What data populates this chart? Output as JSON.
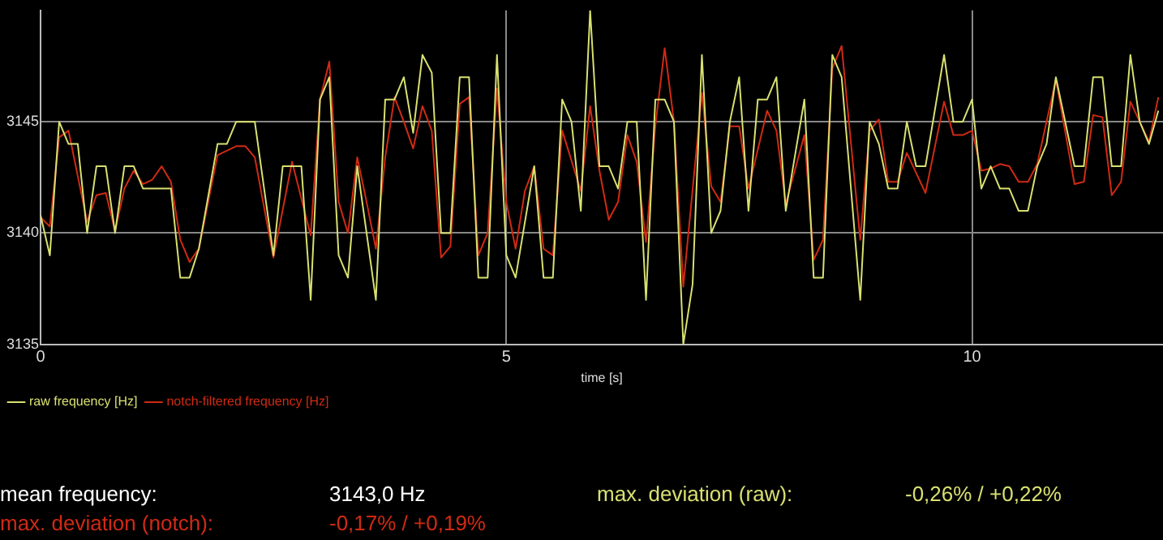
{
  "chart_data": {
    "type": "line",
    "xlabel": "time [s]",
    "xlim": [
      0,
      12.05
    ],
    "xticks": [
      0,
      5,
      10
    ],
    "ylim": [
      3135,
      3150
    ],
    "yticks": [
      3135,
      3140,
      3145
    ],
    "grid": true,
    "legend": "bottom left",
    "marker": "none",
    "line_style": "solid",
    "series": [
      {
        "name": "raw frequency [Hz]",
        "color": "#d8e070",
        "x": [
          0,
          0.1,
          0.2,
          0.3,
          0.4,
          0.5,
          0.6,
          0.7,
          0.8,
          0.9,
          1.0,
          1.1,
          1.4,
          1.5,
          1.6,
          1.7,
          1.9,
          2.0,
          2.1,
          2.3,
          2.5,
          2.6,
          2.8,
          2.9,
          3.0,
          3.1,
          3.2,
          3.3,
          3.4,
          3.5,
          3.6,
          3.7,
          3.8,
          3.9,
          4.0,
          4.1,
          4.2,
          4.3,
          4.4,
          4.5,
          4.6,
          4.7,
          4.8,
          4.9,
          5.0,
          5.1,
          5.3,
          5.4,
          5.5,
          5.6,
          5.7,
          5.8,
          5.9,
          6.0,
          6.1,
          6.2,
          6.3,
          6.4,
          6.5,
          6.6,
          6.7,
          6.8,
          6.9,
          7.0,
          7.1,
          7.2,
          7.3,
          7.4,
          7.5,
          7.6,
          7.7,
          7.8,
          7.9,
          8.0,
          8.2,
          8.3,
          8.4,
          8.5,
          8.6,
          8.8,
          8.9,
          9.0,
          9.1,
          9.2,
          9.3,
          9.4,
          9.5,
          9.7,
          9.8,
          9.9,
          10.0,
          10.1,
          10.2,
          10.3,
          10.4,
          10.5,
          10.6,
          10.7,
          10.8,
          10.9,
          11.1,
          11.2,
          11.3,
          11.4,
          11.5,
          11.6,
          11.7,
          11.8,
          11.9,
          12.0
        ],
        "values": [
          3140.8,
          3139,
          3145,
          3144,
          3144,
          3140,
          3143,
          3143,
          3140,
          3143,
          3143,
          3142,
          3142,
          3138,
          3138,
          3139.3,
          3144,
          3144,
          3145,
          3145,
          3139,
          3143,
          3143,
          3137,
          3146,
          3147,
          3139,
          3138,
          3143,
          3140,
          3137,
          3146,
          3146,
          3147,
          3144.5,
          3148,
          3147.2,
          3140,
          3140,
          3147,
          3147,
          3138,
          3138,
          3148,
          3139,
          3138,
          3143,
          3138,
          3138,
          3146,
          3145,
          3141,
          3150,
          3143,
          3143,
          3142,
          3145,
          3145,
          3137,
          3146,
          3146,
          3145,
          3135,
          3137.7,
          3148,
          3140,
          3141,
          3145,
          3147,
          3141,
          3146,
          3146,
          3147,
          3141,
          3146,
          3138,
          3138,
          3148,
          3147,
          3137,
          3145,
          3144,
          3142,
          3142,
          3145,
          3143,
          3143,
          3148,
          3145,
          3145,
          3146,
          3142,
          3143,
          3142,
          3142,
          3141,
          3141,
          3143,
          3144,
          3147,
          3143,
          3143,
          3147,
          3147,
          3143,
          3143,
          3148,
          3145,
          3144,
          3145.5
        ]
      },
      {
        "name": "notch-filtered frequency [Hz]",
        "color": "#d02a14",
        "x": [
          0,
          0.1,
          0.2,
          0.3,
          0.5,
          0.6,
          0.7,
          0.8,
          0.9,
          1.0,
          1.1,
          1.2,
          1.3,
          1.4,
          1.5,
          1.6,
          1.7,
          1.9,
          2.1,
          2.2,
          2.3,
          2.5,
          2.7,
          2.9,
          3.0,
          3.1,
          3.2,
          3.3,
          3.4,
          3.5,
          3.6,
          3.7,
          3.8,
          3.9,
          4.0,
          4.1,
          4.2,
          4.3,
          4.4,
          4.5,
          4.6,
          4.7,
          4.8,
          4.9,
          5.0,
          5.1,
          5.2,
          5.3,
          5.4,
          5.5,
          5.6,
          5.8,
          5.9,
          6.0,
          6.1,
          6.2,
          6.3,
          6.4,
          6.5,
          6.6,
          6.7,
          6.8,
          6.9,
          7.1,
          7.2,
          7.3,
          7.4,
          7.5,
          7.6,
          7.8,
          7.9,
          8.0,
          8.2,
          8.3,
          8.4,
          8.5,
          8.6,
          8.8,
          8.9,
          9.0,
          9.1,
          9.2,
          9.3,
          9.5,
          9.7,
          9.8,
          9.9,
          10.0,
          10.1,
          10.2,
          10.3,
          10.4,
          10.5,
          10.6,
          10.7,
          10.9,
          11.1,
          11.2,
          11.3,
          11.4,
          11.5,
          11.6,
          11.7,
          11.8,
          11.9,
          12.0
        ],
        "values": [
          3140.7,
          3140.3,
          3144.3,
          3144.6,
          3140.5,
          3141.7,
          3141.8,
          3140.1,
          3142,
          3142.8,
          3142.2,
          3142.4,
          3143,
          3142.3,
          3139.7,
          3138.7,
          3139.3,
          3143.5,
          3143.9,
          3143.9,
          3143.4,
          3138.9,
          3143.2,
          3139.9,
          3146,
          3147.7,
          3141.4,
          3140,
          3143.4,
          3141.4,
          3139.3,
          3143.4,
          3146.1,
          3145,
          3143.8,
          3145.7,
          3144.6,
          3138.9,
          3139.4,
          3145.8,
          3146.1,
          3139,
          3140,
          3146.5,
          3141.4,
          3139.3,
          3141.9,
          3143,
          3139.3,
          3139,
          3144.6,
          3141.9,
          3145.7,
          3142.8,
          3140.6,
          3141.4,
          3144.4,
          3143.2,
          3139.6,
          3144.8,
          3148.3,
          3145,
          3137.6,
          3146.3,
          3142.1,
          3141.4,
          3144.8,
          3144.8,
          3142,
          3145.5,
          3144.6,
          3141.3,
          3144.4,
          3138.8,
          3139.7,
          3147.4,
          3148.4,
          3139.7,
          3144.6,
          3145.1,
          3142.3,
          3142.3,
          3143.6,
          3141.8,
          3145.9,
          3144.4,
          3144.4,
          3144.6,
          3142.8,
          3142.9,
          3143.1,
          3143,
          3142.3,
          3142.3,
          3143.1,
          3146.9,
          3142.2,
          3142.3,
          3145.3,
          3145.2,
          3141.7,
          3142.3,
          3145.9,
          3145,
          3144.1,
          3146.1
        ]
      }
    ],
    "annotations": [
      "mean frequency:",
      "3143,0 Hz",
      "max. deviation (raw):",
      "-0,26% / +0,22%",
      "max. deviation (notch):",
      "-0,17% / +0,19%"
    ]
  }
}
